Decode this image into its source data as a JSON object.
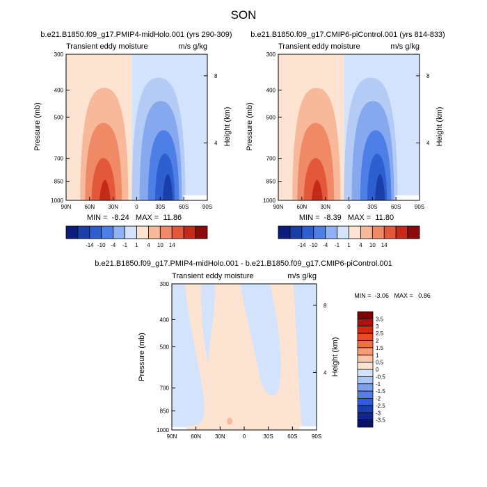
{
  "figure": {
    "season": "SON"
  },
  "chart_data": [
    {
      "type": "heatmap",
      "title": "b.e21.B1850.f09_g17.PMIP4-midHolo.001 (yrs 290-309)",
      "left_label": "Transient eddy moisture",
      "right_label": "m/s g/kg",
      "ylabel": "Pressure (mb)",
      "ylabel_right": "Height (km)",
      "xticks": [
        "90N",
        "60N",
        "30N",
        "0",
        "30S",
        "60S",
        "90S"
      ],
      "yticks": [
        "300",
        "400",
        "500",
        "700",
        "850",
        "1000"
      ],
      "yticks_right": [
        "8",
        "4"
      ],
      "stats_text": "MIN =  -8.24   MAX =  11.86",
      "min": -8.24,
      "max": 11.86,
      "contour_levels": [
        -14,
        -10,
        -4,
        -1,
        1,
        4,
        10,
        14
      ],
      "colorbar_labels": [
        "-14",
        "-10",
        "-4",
        "-1",
        "1",
        "4",
        "10",
        "14"
      ],
      "structure": "positive lobe 60N-0, peak ~45N near surface; negative lobe 0-70S, peak ~45S near surface"
    },
    {
      "type": "heatmap",
      "title": "b.e21.B1850.f09_g17.CMIP6-piControl.001 (yrs 814-833)",
      "left_label": "Transient eddy moisture",
      "right_label": "m/s g/kg",
      "ylabel": "Pressure (mb)",
      "ylabel_right": "Height (km)",
      "xticks": [
        "90N",
        "60N",
        "30N",
        "0",
        "30S",
        "60S",
        "90S"
      ],
      "yticks": [
        "300",
        "400",
        "500",
        "700",
        "850",
        "1000"
      ],
      "yticks_right": [
        "8",
        "4"
      ],
      "stats_text": "MIN =  -8.39   MAX =  11.80",
      "min": -8.39,
      "max": 11.8,
      "contour_levels": [
        -14,
        -10,
        -4,
        -1,
        1,
        4,
        10,
        14
      ],
      "colorbar_labels": [
        "-14",
        "-10",
        "-4",
        "-1",
        "1",
        "4",
        "10",
        "14"
      ],
      "structure": "positive lobe 60N-0, peak ~45N near surface; negative lobe 0-70S, peak ~45S near surface"
    },
    {
      "type": "heatmap",
      "title": "b.e21.B1850.f09_g17.PMIP4-midHolo.001 - b.e21.B1850.f09_g17.CMIP6-piControl.001",
      "left_label": "Transient eddy moisture",
      "right_label": "m/s g/kg",
      "ylabel": "Pressure (mb)",
      "ylabel_right": "Height (km)",
      "xticks": [
        "90N",
        "60N",
        "30N",
        "0",
        "30S",
        "60S",
        "90S"
      ],
      "yticks": [
        "300",
        "400",
        "500",
        "700",
        "850",
        "1000"
      ],
      "yticks_right": [
        "8",
        "4"
      ],
      "stats_text": "MIN =  -3.06   MAX =   0.86",
      "min": -3.06,
      "max": 0.86,
      "contour_levels": [
        -3.5,
        -3,
        -2.5,
        -2,
        -1.5,
        -1,
        -0.5,
        0,
        0.5,
        1,
        1.5,
        2,
        2.5,
        3,
        3.5
      ],
      "colorbar_labels": [
        "3.5",
        "3",
        "2.5",
        "2",
        "1.5",
        "1",
        "0.5",
        "0",
        "-0.5",
        "-1",
        "-1.5",
        "-2",
        "-2.5",
        "-3",
        "-3.5"
      ],
      "structure": "mostly 0 to 0.5 (light orange) bands; 0 to -0.5 (light blue) regions near 80N-65N, 15S-45S and poleward of 70S"
    }
  ],
  "colors": {
    "diverging_12": [
      "#0b1e7e",
      "#1b3fa8",
      "#2d5fd0",
      "#4e7fe6",
      "#8fb0f2",
      "#d3e3fb",
      "#fde4d2",
      "#f8b89a",
      "#f08a66",
      "#e3583a",
      "#c42a18",
      "#8c0a0a"
    ],
    "diverging_16": [
      "#800000",
      "#b01010",
      "#d42810",
      "#ea4a24",
      "#f47044",
      "#f99c76",
      "#fbc6a8",
      "#fde4d2",
      "#d3e3fb",
      "#a9c6f5",
      "#7ea2ee",
      "#557fe5",
      "#2f5ed6",
      "#1c3fb0",
      "#10268a",
      "#071466"
    ]
  }
}
